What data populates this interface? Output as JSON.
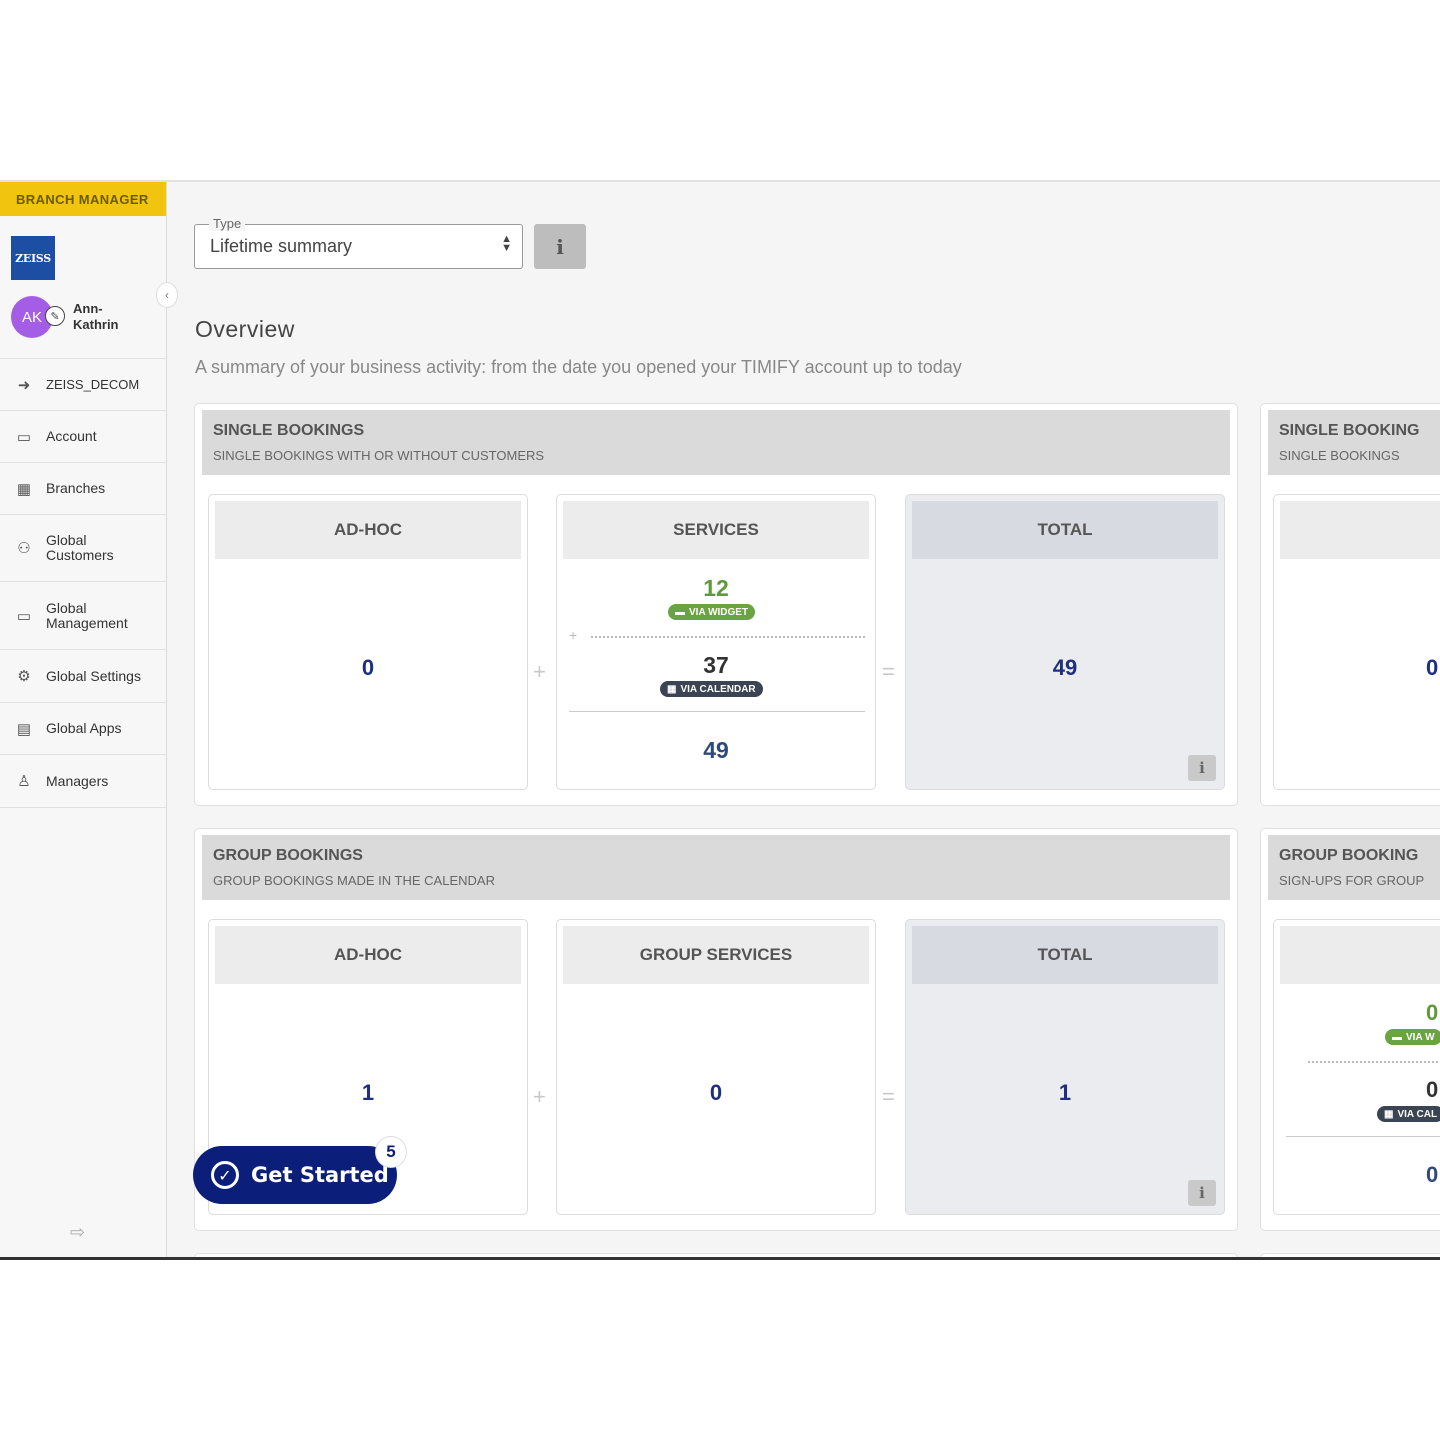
{
  "sidebar": {
    "role": "BRANCH MANAGER",
    "logo_text": "ZEISS",
    "user": {
      "initials": "AK",
      "name": "Ann-Kathrin"
    },
    "items": [
      {
        "label": "ZEISS_DECOM",
        "icon": "back-arrow-icon"
      },
      {
        "label": "Account",
        "icon": "briefcase-icon"
      },
      {
        "label": "Branches",
        "icon": "building-icon"
      },
      {
        "label": "Global Customers",
        "icon": "users-icon"
      },
      {
        "label": "Global Management",
        "icon": "briefcase-icon"
      },
      {
        "label": "Global Settings",
        "icon": "gears-icon"
      },
      {
        "label": "Global Apps",
        "icon": "grid-icon"
      },
      {
        "label": "Managers",
        "icon": "manager-icon"
      }
    ]
  },
  "filter": {
    "legend": "Type",
    "value": "Lifetime summary",
    "info_icon": "info-icon"
  },
  "overview": {
    "title": "Overview",
    "subtitle": "A summary of your business activity: from the date you opened your TIMIFY account up to today"
  },
  "single_bookings": {
    "title": "SINGLE BOOKINGS",
    "subtitle": "SINGLE BOOKINGS WITH OR WITHOUT CUSTOMERS",
    "adhoc": {
      "label": "AD-HOC",
      "value": "0"
    },
    "services": {
      "label": "SERVICES",
      "widget_value": "12",
      "widget_badge": "VIA WIDGET",
      "calendar_value": "37",
      "calendar_badge": "VIA CALENDAR",
      "total": "49"
    },
    "total": {
      "label": "TOTAL",
      "value": "49"
    }
  },
  "group_bookings": {
    "title": "GROUP BOOKINGS",
    "subtitle": "GROUP BOOKINGS MADE IN THE CALENDAR",
    "adhoc": {
      "label": "AD-HOC",
      "value": "1"
    },
    "services": {
      "label": "GROUP SERVICES",
      "value": "0"
    },
    "total": {
      "label": "TOTAL",
      "value": "1"
    }
  },
  "single_booking_partial": {
    "title": "SINGLE BOOKING",
    "subtitle": "SINGLE BOOKINGS",
    "value": "0"
  },
  "group_booking_partial": {
    "title": "GROUP BOOKING",
    "subtitle": "SIGN-UPS FOR GROUP",
    "widget_value": "0",
    "widget_badge": "VIA W",
    "calendar_value": "0",
    "calendar_badge": "VIA CAL",
    "total": "0"
  },
  "operators": {
    "plus": "+",
    "equals": "="
  },
  "get_started": {
    "label": "Get Started",
    "count": "5"
  },
  "colors": {
    "accent": "#f1c40f",
    "primary": "#0b1f7a",
    "widget_green": "#6aa341"
  }
}
